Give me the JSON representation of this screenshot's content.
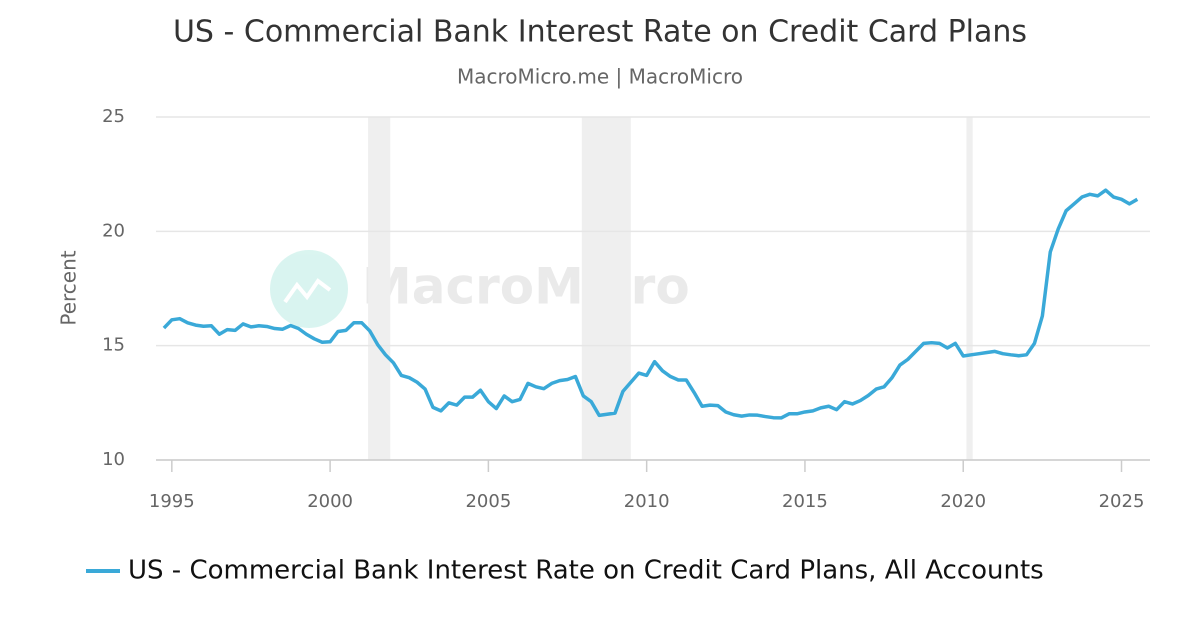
{
  "chart_data": {
    "type": "line",
    "title": "US - Commercial Bank Interest Rate on Credit Card Plans",
    "subtitle": "MacroMicro.me | MacroMicro",
    "watermark": "MacroMicro",
    "y_label": "Percent",
    "x": [
      1994.75,
      1995,
      1995.25,
      1995.5,
      1995.75,
      1996,
      1996.25,
      1996.5,
      1996.75,
      1997,
      1997.25,
      1997.5,
      1997.75,
      1998,
      1998.25,
      1998.5,
      1998.75,
      1999,
      1999.25,
      1999.5,
      1999.75,
      2000,
      2000.25,
      2000.5,
      2000.75,
      2001,
      2001.25,
      2001.5,
      2001.75,
      2002,
      2002.25,
      2002.5,
      2002.75,
      2003,
      2003.25,
      2003.5,
      2003.75,
      2004,
      2004.25,
      2004.5,
      2004.75,
      2005,
      2005.25,
      2005.5,
      2005.75,
      2006,
      2006.25,
      2006.5,
      2006.75,
      2007,
      2007.25,
      2007.5,
      2007.75,
      2008,
      2008.25,
      2008.5,
      2008.75,
      2009,
      2009.25,
      2009.5,
      2009.75,
      2010,
      2010.25,
      2010.5,
      2010.75,
      2011,
      2011.25,
      2011.5,
      2011.75,
      2012,
      2012.25,
      2012.5,
      2012.75,
      2013,
      2013.25,
      2013.5,
      2013.75,
      2014,
      2014.25,
      2014.5,
      2014.75,
      2015,
      2015.25,
      2015.5,
      2015.75,
      2016,
      2016.25,
      2016.5,
      2016.75,
      2017,
      2017.25,
      2017.5,
      2017.75,
      2018,
      2018.25,
      2018.5,
      2018.75,
      2019,
      2019.25,
      2019.5,
      2019.75,
      2020,
      2020.25,
      2020.5,
      2020.75,
      2021,
      2021.25,
      2021.5,
      2021.75,
      2022,
      2022.25,
      2022.5,
      2022.75,
      2023,
      2023.25,
      2023.5,
      2023.75,
      2024,
      2024.25,
      2024.5,
      2024.75,
      2025,
      2025.25,
      2025.5
    ],
    "series": [
      {
        "name": "US - Commercial Bank Interest Rate on Credit Card Plans, All Accounts",
        "color": "#3aa9d8",
        "values": [
          15.77,
          16.13,
          16.18,
          16.0,
          15.9,
          15.85,
          15.87,
          15.5,
          15.7,
          15.67,
          15.95,
          15.82,
          15.87,
          15.84,
          15.75,
          15.72,
          15.88,
          15.75,
          15.5,
          15.3,
          15.15,
          15.17,
          15.62,
          15.67,
          16.0,
          16.0,
          15.65,
          15.05,
          14.6,
          14.25,
          13.7,
          13.6,
          13.4,
          13.1,
          12.3,
          12.15,
          12.5,
          12.4,
          12.75,
          12.75,
          13.05,
          12.55,
          12.25,
          12.8,
          12.55,
          12.65,
          13.35,
          13.2,
          13.12,
          13.35,
          13.47,
          13.52,
          13.65,
          12.8,
          12.55,
          11.95,
          12.0,
          12.05,
          13.0,
          13.4,
          13.8,
          13.7,
          14.3,
          13.9,
          13.65,
          13.5,
          13.5,
          12.95,
          12.35,
          12.4,
          12.38,
          12.1,
          11.98,
          11.92,
          11.97,
          11.96,
          11.9,
          11.85,
          11.84,
          12.02,
          12.02,
          12.1,
          12.15,
          12.28,
          12.35,
          12.2,
          12.55,
          12.45,
          12.6,
          12.82,
          13.1,
          13.2,
          13.6,
          14.15,
          14.4,
          14.75,
          15.1,
          15.13,
          15.1,
          14.9,
          15.1,
          14.55,
          14.6,
          14.65,
          14.7,
          14.75,
          14.65,
          14.6,
          14.56,
          14.6,
          15.1,
          16.3,
          19.1,
          20.1,
          20.9,
          21.2,
          21.5,
          21.62,
          21.55,
          21.8,
          21.5,
          21.4,
          21.2,
          21.4
        ]
      }
    ],
    "shaded_ranges": [
      [
        2001.2,
        2001.9
      ],
      [
        2007.95,
        2009.5
      ],
      [
        2020.1,
        2020.3
      ]
    ],
    "shade_color": "#efefef",
    "xlim": [
      1994.5,
      2025.9
    ],
    "xticks": [
      1995,
      2000,
      2005,
      2010,
      2015,
      2020,
      2025
    ],
    "ylim": [
      10,
      25
    ],
    "yticks": [
      10,
      15,
      20,
      25
    ],
    "grid": true
  }
}
